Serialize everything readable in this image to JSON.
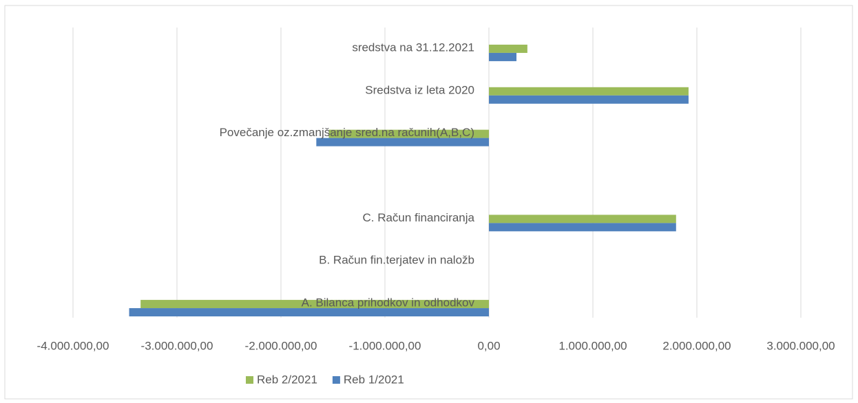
{
  "chart_data": {
    "type": "hbar",
    "categories": [
      "A. Bilanca prihodkov in odhodkov",
      "B. Račun fin.terjatev in naložb",
      "C. Račun financiranja",
      null,
      "Povečanje oz.zmanjšanje sred.na računih(A,B,C)",
      "Sredstva iz leta 2020",
      "sredstva na 31.12.2021"
    ],
    "series": [
      {
        "name": "Reb 2/2021",
        "color": "#9bbb59",
        "values": [
          -3350000,
          0,
          1800000,
          null,
          -1540000,
          1920000,
          370000
        ]
      },
      {
        "name": "Reb 1/2021",
        "color": "#4f81bd",
        "values": [
          -3460000,
          0,
          1800000,
          null,
          -1660000,
          1920000,
          265000
        ]
      }
    ],
    "xlim": [
      -4000000,
      3000000
    ],
    "xticks": [
      {
        "value": -4000000,
        "label": "-4.000.000,00"
      },
      {
        "value": -3000000,
        "label": "-3.000.000,00"
      },
      {
        "value": -2000000,
        "label": "-2.000.000,00"
      },
      {
        "value": -1000000,
        "label": "-1.000.000,00"
      },
      {
        "value": 0,
        "label": "0,00"
      },
      {
        "value": 1000000,
        "label": "1.000.000,00"
      },
      {
        "value": 2000000,
        "label": "2.000.000,00"
      },
      {
        "value": 3000000,
        "label": "3.000.000,00"
      }
    ],
    "grid": true,
    "legend": "bottom"
  }
}
